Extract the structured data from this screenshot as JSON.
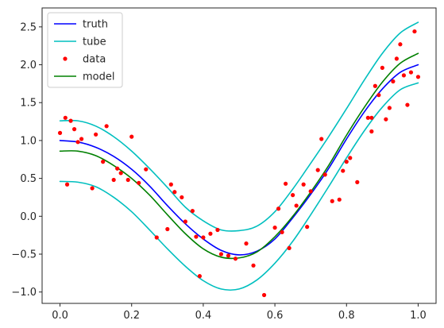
{
  "chart_data": {
    "type": "line",
    "xlim": [
      -0.05,
      1.05
    ],
    "ylim": [
      -1.15,
      2.75
    ],
    "xticks": [
      {
        "value": 0.0,
        "label": "0.0"
      },
      {
        "value": 0.2,
        "label": "0.2"
      },
      {
        "value": 0.4,
        "label": "0.4"
      },
      {
        "value": 0.6,
        "label": "0.6"
      },
      {
        "value": 0.8,
        "label": "0.8"
      },
      {
        "value": 1.0,
        "label": "1.0"
      }
    ],
    "yticks": [
      {
        "value": -1.0,
        "label": "−1.0"
      },
      {
        "value": -0.5,
        "label": "−0.5"
      },
      {
        "value": 0.0,
        "label": "0.0"
      },
      {
        "value": 0.5,
        "label": "0.5"
      },
      {
        "value": 1.0,
        "label": "1.0"
      },
      {
        "value": 1.5,
        "label": "1.5"
      },
      {
        "value": 2.0,
        "label": "2.0"
      },
      {
        "value": 2.5,
        "label": "2.5"
      }
    ],
    "grid": false,
    "legend_position": "top-left",
    "x": [
      0.0,
      0.05,
      0.1,
      0.15,
      0.2,
      0.25,
      0.3,
      0.35,
      0.4,
      0.45,
      0.5,
      0.55,
      0.6,
      0.65,
      0.7,
      0.75,
      0.8,
      0.85,
      0.9,
      0.95,
      1.0
    ],
    "series": [
      {
        "name": "truth",
        "color": "#0000ff",
        "style": "line",
        "values": [
          1.0,
          0.98,
          0.91,
          0.79,
          0.62,
          0.4,
          0.14,
          -0.1,
          -0.3,
          -0.45,
          -0.51,
          -0.46,
          -0.3,
          -0.02,
          0.29,
          0.63,
          1.02,
          1.38,
          1.68,
          1.9,
          2.0
        ]
      },
      {
        "name": "tube",
        "color": "#00bfbf",
        "style": "line",
        "values": [
          1.26,
          1.26,
          1.19,
          1.05,
          0.86,
          0.63,
          0.38,
          0.12,
          -0.06,
          -0.18,
          -0.19,
          -0.13,
          0.06,
          0.36,
          0.7,
          1.05,
          1.42,
          1.8,
          2.15,
          2.42,
          2.56
        ]
      },
      {
        "name": "tube-lower",
        "color": "#00bfbf",
        "style": "line",
        "values": [
          0.46,
          0.45,
          0.39,
          0.25,
          0.06,
          -0.18,
          -0.43,
          -0.66,
          -0.85,
          -0.96,
          -0.96,
          -0.84,
          -0.62,
          -0.33,
          0.02,
          0.39,
          0.77,
          1.13,
          1.44,
          1.67,
          1.76
        ]
      },
      {
        "name": "model",
        "color": "#008000",
        "style": "line",
        "values": [
          0.86,
          0.86,
          0.8,
          0.67,
          0.5,
          0.28,
          0.02,
          -0.23,
          -0.43,
          -0.54,
          -0.55,
          -0.47,
          -0.27,
          0.0,
          0.32,
          0.67,
          1.07,
          1.44,
          1.77,
          2.02,
          2.15
        ]
      }
    ],
    "data_points": {
      "name": "data",
      "color": "#ff0000",
      "x": [
        0.0,
        0.015,
        0.02,
        0.03,
        0.04,
        0.05,
        0.06,
        0.09,
        0.1,
        0.12,
        0.13,
        0.15,
        0.16,
        0.17,
        0.19,
        0.2,
        0.22,
        0.24,
        0.27,
        0.31,
        0.32,
        0.34,
        0.35,
        0.37,
        0.38,
        0.39,
        0.4,
        0.42,
        0.44,
        0.45,
        0.47,
        0.49,
        0.52,
        0.54,
        0.57,
        0.6,
        0.62,
        0.63,
        0.64,
        0.66,
        0.68,
        0.7,
        0.72,
        0.73,
        0.74,
        0.76,
        0.78,
        0.8,
        0.81,
        0.83,
        0.86,
        0.87,
        0.88,
        0.89,
        0.9,
        0.91,
        0.92,
        0.93,
        0.94,
        0.95,
        0.96,
        0.97,
        0.98,
        0.99,
        1.0,
        0.3,
        0.61,
        0.65,
        0.69,
        0.79,
        0.87
      ],
      "y": [
        1.1,
        1.3,
        0.42,
        1.26,
        1.15,
        0.98,
        1.02,
        0.37,
        1.08,
        0.72,
        1.19,
        0.48,
        0.63,
        0.57,
        0.48,
        1.05,
        0.44,
        0.62,
        -0.28,
        0.42,
        0.32,
        0.25,
        -0.07,
        0.07,
        -0.27,
        -0.79,
        -0.28,
        -0.23,
        -0.18,
        -0.5,
        -0.52,
        -0.56,
        -0.36,
        -0.65,
        -1.04,
        -0.15,
        -0.21,
        0.43,
        -0.42,
        0.14,
        0.42,
        0.33,
        0.61,
        1.02,
        0.55,
        0.2,
        0.22,
        0.72,
        0.77,
        0.45,
        1.3,
        1.12,
        1.72,
        1.6,
        1.96,
        1.28,
        1.43,
        1.78,
        2.08,
        2.27,
        1.86,
        1.47,
        1.9,
        2.44,
        1.84,
        -0.17,
        0.1,
        0.28,
        -0.14,
        0.6,
        1.3
      ]
    }
  },
  "legend": [
    {
      "key": "truth",
      "label": "truth",
      "kind": "line",
      "color": "#0000ff"
    },
    {
      "key": "tube",
      "label": "tube",
      "kind": "line",
      "color": "#00bfbf"
    },
    {
      "key": "data",
      "label": "data",
      "kind": "marker",
      "color": "#ff0000"
    },
    {
      "key": "model",
      "label": "model",
      "kind": "line",
      "color": "#008000"
    }
  ]
}
